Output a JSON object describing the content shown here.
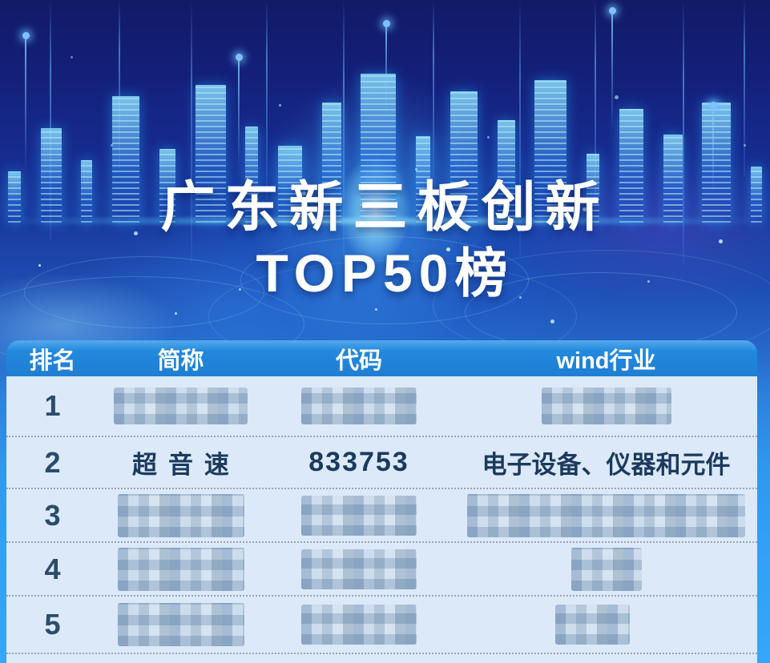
{
  "title": {
    "line1": "广东新三板创新",
    "line2": "TOP50榜"
  },
  "table": {
    "headers": {
      "rank": "排名",
      "name": "简称",
      "code": "代码",
      "industry": "wind行业"
    },
    "rows": [
      {
        "rank": "1",
        "name": null,
        "code": null,
        "industry": null,
        "redacted": true
      },
      {
        "rank": "2",
        "name": "超音速",
        "code": "833753",
        "industry": "电子设备、仪器和元件",
        "redacted": false
      },
      {
        "rank": "3",
        "name": null,
        "code": null,
        "industry": null,
        "redacted": true
      },
      {
        "rank": "4",
        "name": null,
        "code": null,
        "industry": null,
        "redacted": true
      },
      {
        "rank": "5",
        "name": null,
        "code": null,
        "industry": null,
        "redacted": true
      }
    ],
    "note": "Rows 1, 3, 4 and 5 are pixelated (redacted) in the source image"
  },
  "chart_data": {
    "type": "table",
    "title": "广东新三板创新TOP50榜",
    "columns": [
      "排名",
      "简称",
      "代码",
      "wind行业"
    ],
    "rows": [
      [
        "1",
        null,
        null,
        null
      ],
      [
        "2",
        "超音速",
        "833753",
        "电子设备、仪器和元件"
      ],
      [
        "3",
        null,
        null,
        null
      ],
      [
        "4",
        null,
        null,
        null
      ],
      [
        "5",
        null,
        null,
        null
      ]
    ],
    "redacted_rows": [
      1,
      3,
      4,
      5
    ]
  },
  "colors": {
    "header_blue": "#2289dd",
    "body_background": "#dbe9f9",
    "text_dark": "#1c3a5d",
    "frame_blue": "#35a6fa",
    "background_top": "#111b66",
    "title_white": "#ffffff"
  }
}
